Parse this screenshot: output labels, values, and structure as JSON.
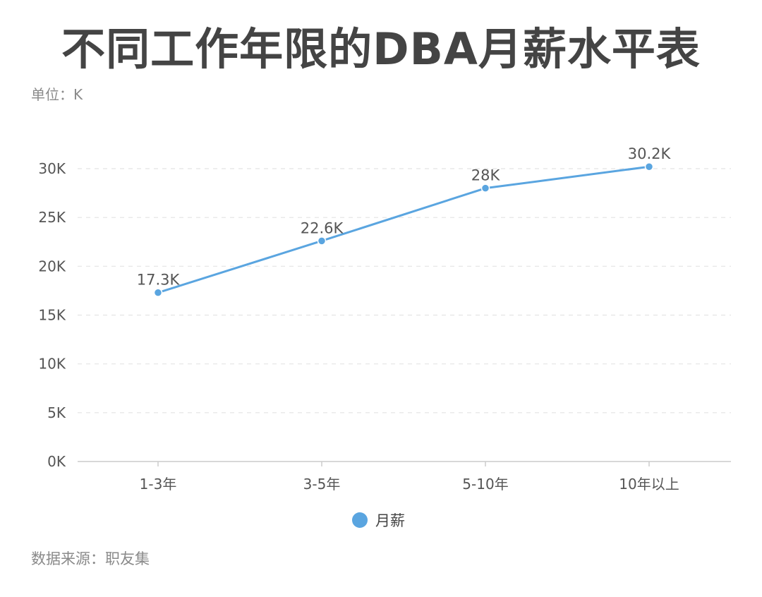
{
  "header": {
    "title": "不同工作年限的DBA月薪水平表",
    "unit": "单位：K"
  },
  "footer": {
    "source": "数据来源：职友集"
  },
  "chart_data": {
    "type": "line",
    "title": "不同工作年限的DBA月薪水平表",
    "xlabel": "",
    "ylabel": "",
    "categories": [
      "1-3年",
      "3-5年",
      "5-10年",
      "10年以上"
    ],
    "series": [
      {
        "name": "月薪",
        "values": [
          17.3,
          22.6,
          28,
          30.2
        ],
        "data_labels": [
          "17.3K",
          "22.6K",
          "28K",
          "30.2K"
        ],
        "color": "#5aa5e0"
      }
    ],
    "ylim": [
      0,
      30
    ],
    "yticks": [
      0,
      5,
      10,
      15,
      20,
      25,
      30
    ],
    "ytick_labels": [
      "0K",
      "5K",
      "10K",
      "15K",
      "20K",
      "25K",
      "30K"
    ],
    "grid": true,
    "grid_style": "dashed",
    "legend": "bottom-center"
  },
  "colors": {
    "series": "#5aa5e0",
    "grid": "#e4e4e4",
    "axis": "#cccccc"
  }
}
